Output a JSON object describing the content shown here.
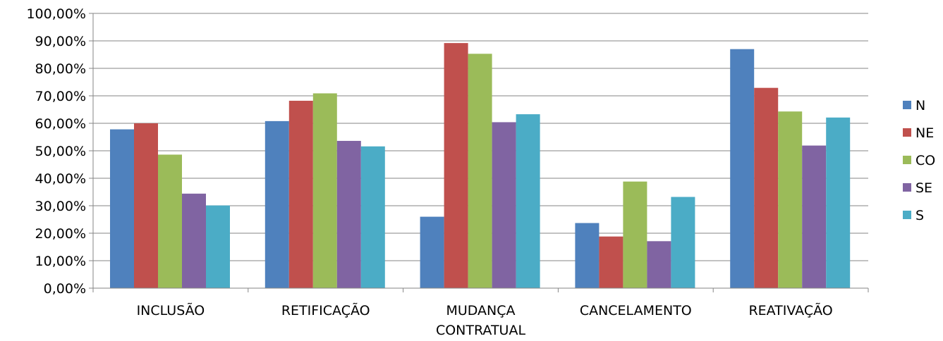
{
  "chart_data": {
    "type": "bar",
    "categories": [
      [
        "INCLUSÃO"
      ],
      [
        "RETIFICAÇÃO"
      ],
      [
        "MUDANÇA",
        "CONTRATUAL"
      ],
      [
        "CANCELAMENTO"
      ],
      [
        "REATIVAÇÃO"
      ]
    ],
    "series": [
      {
        "name": "N",
        "color": "#4F81BD",
        "values": [
          57.8,
          60.8,
          26.0,
          23.7,
          87.0
        ]
      },
      {
        "name": "NE",
        "color": "#C0504D",
        "values": [
          60.0,
          68.2,
          89.2,
          18.8,
          72.9
        ]
      },
      {
        "name": "CO",
        "color": "#9BBB59",
        "values": [
          48.6,
          70.9,
          85.3,
          38.8,
          64.3
        ]
      },
      {
        "name": "SE",
        "color": "#8064A2",
        "values": [
          34.4,
          53.6,
          60.4,
          17.1,
          51.9
        ]
      },
      {
        "name": "S",
        "color": "#4BACC6",
        "values": [
          30.1,
          51.6,
          63.3,
          33.2,
          62.1
        ]
      }
    ],
    "y_ticks": [
      "0,00%",
      "10,00%",
      "20,00%",
      "30,00%",
      "40,00%",
      "50,00%",
      "60,00%",
      "70,00%",
      "80,00%",
      "90,00%",
      "100,00%"
    ],
    "ylim": [
      0,
      100
    ],
    "grid": true,
    "legend_position": "right",
    "title": "",
    "xlabel": "",
    "ylabel": ""
  }
}
